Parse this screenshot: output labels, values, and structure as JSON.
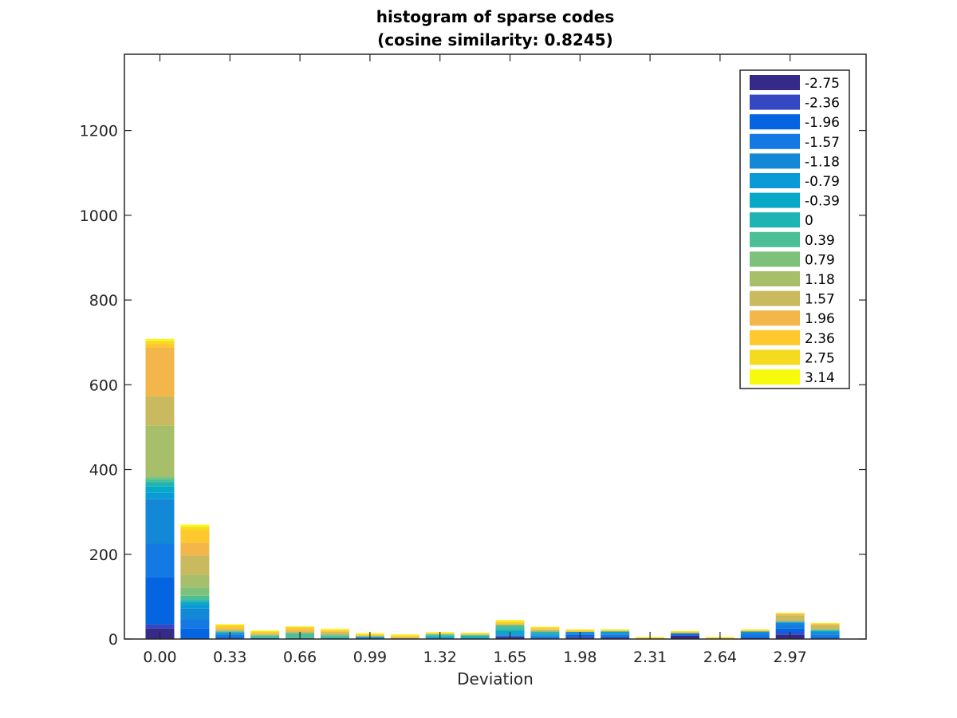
{
  "chart_data": {
    "type": "bar",
    "stacked": true,
    "title": [
      "histogram of sparse codes",
      "(cosine similarity: 0.8245)"
    ],
    "xlabel": "Deviation",
    "ylabel": "",
    "ylim": [
      0,
      1380
    ],
    "yticks": [
      0,
      200,
      400,
      600,
      800,
      1000,
      1200
    ],
    "xticks": [
      "0.00",
      "0.33",
      "0.66",
      "0.99",
      "1.32",
      "1.65",
      "1.98",
      "2.31",
      "2.64",
      "2.97"
    ],
    "categories": [
      "0.00",
      "0.165",
      "0.33",
      "0.495",
      "0.66",
      "0.825",
      "0.99",
      "1.155",
      "1.32",
      "1.485",
      "1.65",
      "1.815",
      "1.98",
      "2.145",
      "2.31",
      "2.475",
      "2.64",
      "2.805",
      "2.97",
      "3.135"
    ],
    "legend_position": "top-right",
    "grid": false,
    "series": [
      {
        "name": "-2.75",
        "color": "#352a87",
        "values": [
          25,
          0,
          0,
          0,
          0,
          0,
          0,
          0,
          0,
          0,
          5,
          0,
          3,
          3,
          0,
          8,
          0,
          2,
          10,
          0
        ]
      },
      {
        "name": "-2.36",
        "color": "#3448c4",
        "values": [
          10,
          0,
          0,
          0,
          0,
          0,
          0,
          0,
          0,
          0,
          0,
          0,
          2,
          0,
          0,
          0,
          0,
          0,
          5,
          0
        ]
      },
      {
        "name": "-1.96",
        "color": "#0565e0",
        "values": [
          110,
          25,
          5,
          0,
          0,
          0,
          2,
          0,
          0,
          0,
          0,
          3,
          5,
          4,
          0,
          4,
          0,
          5,
          10,
          5
        ]
      },
      {
        "name": "-1.57",
        "color": "#1479e3",
        "values": [
          80,
          22,
          5,
          2,
          0,
          0,
          0,
          0,
          0,
          0,
          3,
          3,
          2,
          3,
          0,
          0,
          0,
          6,
          8,
          5
        ]
      },
      {
        "name": "-1.18",
        "color": "#1288d6",
        "values": [
          105,
          25,
          3,
          0,
          2,
          0,
          3,
          0,
          2,
          0,
          3,
          3,
          3,
          3,
          0,
          2,
          0,
          3,
          5,
          5
        ]
      },
      {
        "name": "-0.79",
        "color": "#0a9bd6",
        "values": [
          15,
          10,
          2,
          0,
          0,
          2,
          0,
          0,
          2,
          2,
          3,
          2,
          2,
          3,
          0,
          0,
          0,
          2,
          3,
          3
        ]
      },
      {
        "name": "-0.39",
        "color": "#08a9c6",
        "values": [
          15,
          5,
          0,
          0,
          0,
          0,
          0,
          0,
          2,
          3,
          5,
          2,
          0,
          2,
          0,
          0,
          0,
          0,
          0,
          2
        ]
      },
      {
        "name": "0",
        "color": "#1fb3b3",
        "values": [
          10,
          5,
          0,
          2,
          0,
          2,
          0,
          0,
          3,
          3,
          5,
          3,
          0,
          0,
          0,
          0,
          0,
          0,
          0,
          0
        ]
      },
      {
        "name": "0.39",
        "color": "#4cbf96",
        "values": [
          8,
          10,
          3,
          5,
          12,
          5,
          2,
          0,
          2,
          2,
          8,
          2,
          0,
          0,
          0,
          0,
          0,
          0,
          0,
          2
        ]
      },
      {
        "name": "0.79",
        "color": "#7dc17b",
        "values": [
          5,
          20,
          0,
          0,
          0,
          0,
          0,
          0,
          0,
          0,
          0,
          0,
          0,
          0,
          0,
          0,
          0,
          0,
          0,
          0
        ]
      },
      {
        "name": "1.18",
        "color": "#a7be6a",
        "values": [
          120,
          30,
          3,
          0,
          0,
          3,
          0,
          0,
          0,
          0,
          0,
          0,
          0,
          0,
          0,
          0,
          0,
          0,
          0,
          0
        ]
      },
      {
        "name": "1.57",
        "color": "#c9b95f",
        "values": [
          70,
          45,
          0,
          2,
          3,
          3,
          0,
          3,
          0,
          0,
          3,
          3,
          0,
          0,
          0,
          0,
          0,
          0,
          15,
          10
        ]
      },
      {
        "name": "1.96",
        "color": "#f2b64b",
        "values": [
          115,
          30,
          5,
          2,
          5,
          2,
          0,
          2,
          0,
          0,
          0,
          2,
          0,
          0,
          0,
          0,
          0,
          0,
          3,
          3
        ]
      },
      {
        "name": "2.36",
        "color": "#fec92f",
        "values": [
          10,
          30,
          5,
          3,
          5,
          3,
          3,
          2,
          2,
          2,
          5,
          3,
          3,
          2,
          2,
          2,
          2,
          2,
          0,
          0
        ]
      },
      {
        "name": "2.75",
        "color": "#f6da1f",
        "values": [
          5,
          8,
          2,
          2,
          2,
          2,
          2,
          2,
          2,
          2,
          2,
          2,
          2,
          2,
          2,
          2,
          2,
          2,
          2,
          2
        ]
      },
      {
        "name": "3.14",
        "color": "#f8fa0d",
        "values": [
          5,
          5,
          2,
          2,
          1,
          2,
          2,
          2,
          1,
          1,
          3,
          1,
          1,
          1,
          1,
          1,
          1,
          1,
          1,
          1
        ]
      }
    ]
  }
}
